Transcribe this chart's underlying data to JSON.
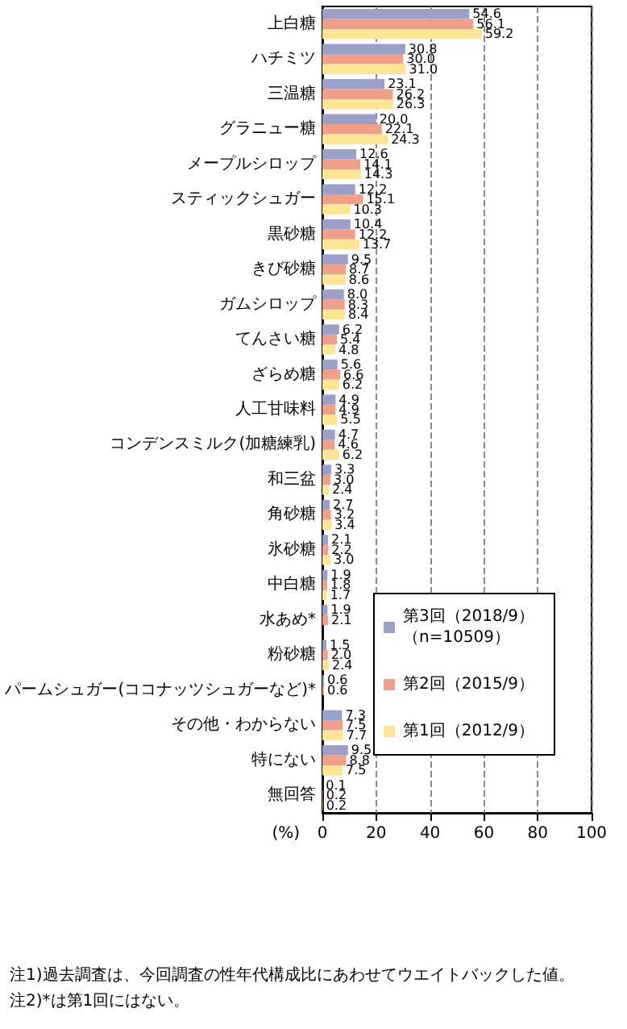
{
  "chart_data": {
    "type": "bar",
    "orientation": "horizontal",
    "categories": [
      "上白糖",
      "ハチミツ",
      "三温糖",
      "グラニュー糖",
      "メープルシロップ",
      "スティックシュガー",
      "黒砂糖",
      "きび砂糖",
      "ガムシロップ",
      "てんさい糖",
      "ざらめ糖",
      "人工甘味料",
      "コンデンスミルク(加糖練乳)",
      "和三盆",
      "角砂糖",
      "氷砂糖",
      "中白糖",
      "水あめ*",
      "粉砂糖",
      "パームシュガー(ココナッツシュガーなど)*",
      "その他・わからない",
      "特にない",
      "無回答"
    ],
    "series": [
      {
        "name": "第3回（2018/9）（n=10509）",
        "color": "#9aa0c8",
        "values": [
          54.6,
          30.8,
          23.1,
          20,
          12.6,
          12.2,
          10.4,
          9.5,
          8,
          6.2,
          5.6,
          4.9,
          4.7,
          3.3,
          2.7,
          2.1,
          1.9,
          1.9,
          1.5,
          0.6,
          7.3,
          9.5,
          0.1
        ],
        "value_labels": [
          "54.6",
          "30.8",
          "23.1",
          "20.0",
          "12.6",
          "12.2",
          "10.4",
          "9.5",
          "8.0",
          "6.2",
          "5.6",
          "4.9",
          "4.7",
          "3.3",
          "2.7",
          "2.1",
          "1.9",
          "1.9",
          "1.5",
          "0.6",
          "7.3",
          "9.5",
          "0.1"
        ]
      },
      {
        "name": "第2回（2015/9）",
        "color": "#eea08a",
        "values": [
          56.1,
          30,
          26.2,
          22.1,
          14.1,
          15.1,
          12.2,
          8.7,
          8.3,
          5.4,
          6.6,
          4.9,
          4.6,
          3,
          3.2,
          2.2,
          1.8,
          2.1,
          2,
          0.6,
          7.5,
          8.8,
          0.2
        ],
        "value_labels": [
          "56.1",
          "30.0",
          "26.2",
          "22.1",
          "14.1",
          "15.1",
          "12.2",
          "8.7",
          "8.3",
          "5.4",
          "6.6",
          "4.9",
          "4.6",
          "3.0",
          "3.2",
          "2.2",
          "1.8",
          "2.1",
          "2.0",
          "0.6",
          "7.5",
          "8.8",
          "0.2"
        ]
      },
      {
        "name": "第1回（2012/9）",
        "color": "#fde595",
        "values": [
          59.2,
          31,
          26.3,
          24.3,
          14.3,
          10.3,
          13.7,
          8.6,
          8.4,
          4.8,
          6.2,
          5.5,
          6.2,
          2.4,
          3.4,
          3,
          1.7,
          null,
          2.4,
          null,
          7.7,
          7.5,
          0.2
        ],
        "value_labels": [
          "59.2",
          "31.0",
          "26.3",
          "24.3",
          "14.3",
          "10.3",
          "13.7",
          "8.6",
          "8.4",
          "4.8",
          "6.2",
          "5.5",
          "6.2",
          "2.4",
          "3.4",
          "3.0",
          "1.7",
          null,
          "2.4",
          null,
          "7.7",
          "7.5",
          "0.2"
        ]
      }
    ],
    "xlabel": "(%)",
    "xlim": [
      0,
      100
    ],
    "xticks": [
      0,
      20,
      40,
      60,
      80,
      100
    ],
    "grid": "x",
    "legend": "right",
    "annotations": [
      "注1)過去調査は、今回調査の性年代構成比にあわせてウエイトバックした値。",
      "注2)*は第1回にはない。"
    ]
  }
}
